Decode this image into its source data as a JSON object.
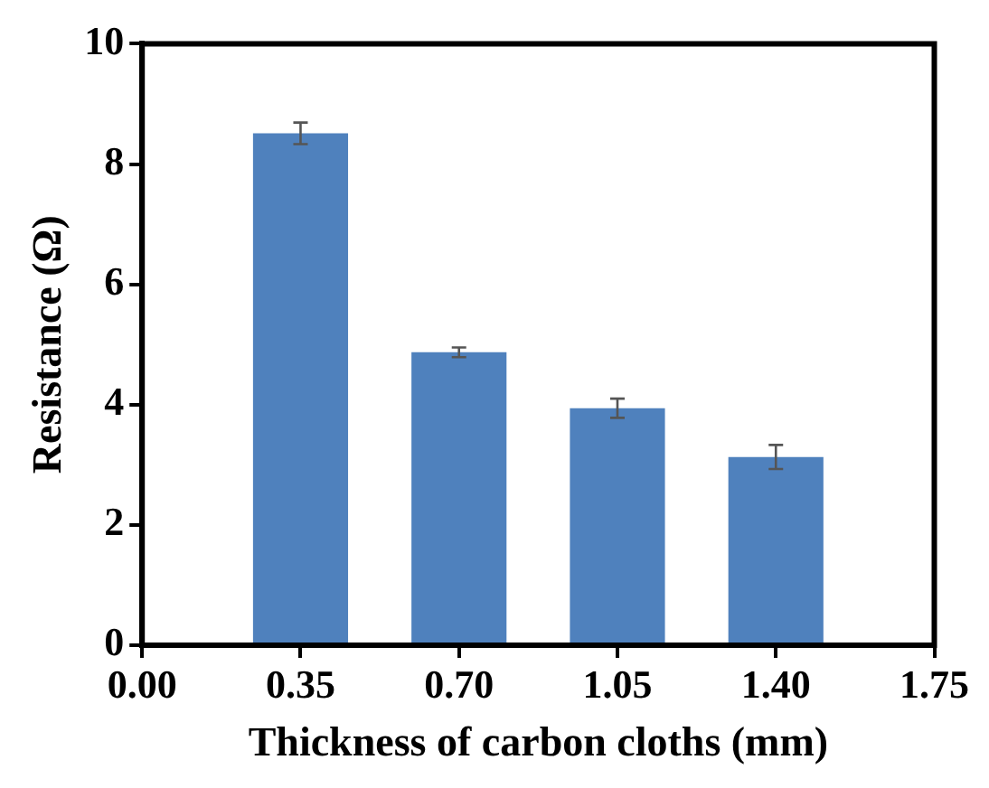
{
  "chart_data": {
    "type": "bar",
    "xlabel": "Thickness of carbon cloths (mm)",
    "ylabel": "Resistance (Ω)",
    "x": [
      0.35,
      0.7,
      1.05,
      1.4
    ],
    "values": [
      8.51,
      4.87,
      3.94,
      3.13
    ],
    "errors": [
      0.18,
      0.08,
      0.16,
      0.2
    ],
    "color": "#4f81bd",
    "xlim": [
      0,
      1.75
    ],
    "xticks": [
      {
        "value": 0,
        "label": "0.00"
      },
      {
        "value": 0.35,
        "label": "0.35"
      },
      {
        "value": 0.7,
        "label": "0.70"
      },
      {
        "value": 1.05,
        "label": "1.05"
      },
      {
        "value": 1.4,
        "label": "1.40"
      },
      {
        "value": 1.75,
        "label": "1.75"
      }
    ],
    "ylim": [
      0,
      10
    ],
    "yticks": [
      0,
      2,
      4,
      6,
      8,
      10
    ],
    "grid": false,
    "legend": false
  }
}
